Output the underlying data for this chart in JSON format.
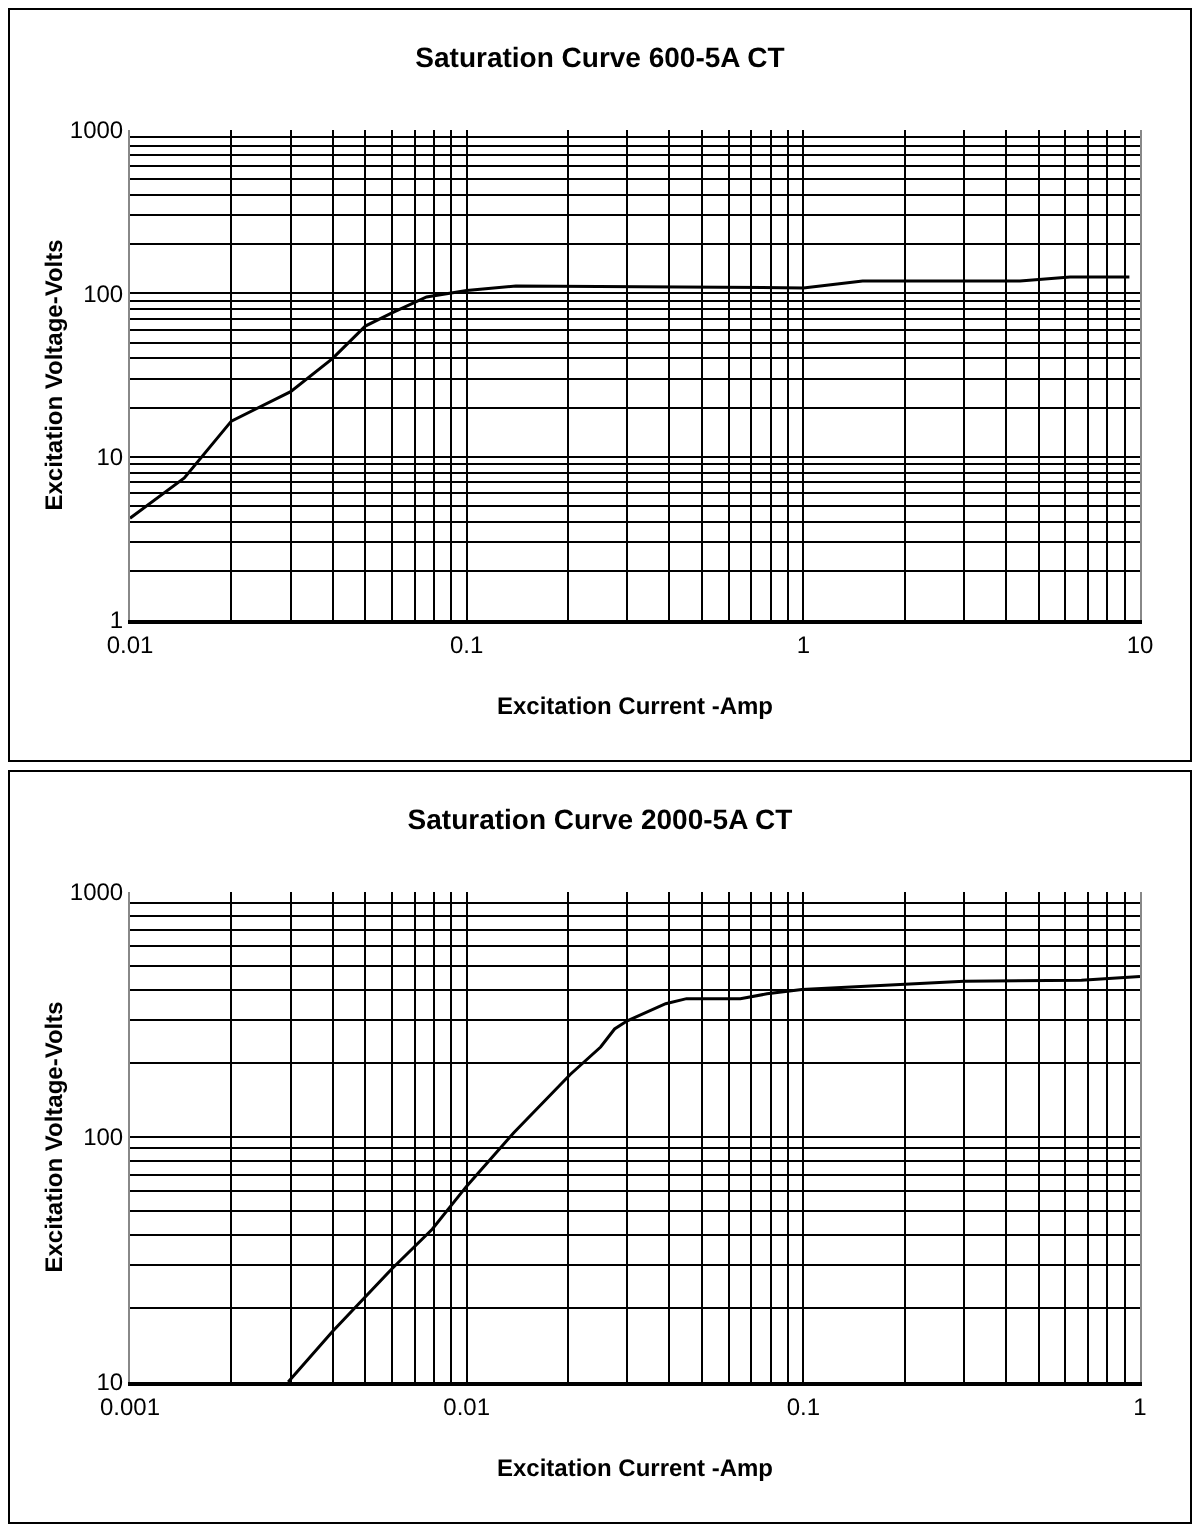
{
  "chart_data": [
    {
      "type": "line",
      "title": "Saturation Curve 600-5A CT",
      "xlabel": "Excitation Current -Amp",
      "ylabel": "Excitation Voltage-Volts",
      "log": "xy",
      "grid": true,
      "marker": "none",
      "line_style": "solid",
      "x": [
        0.01,
        0.0145,
        0.02,
        0.03,
        0.04,
        0.05,
        0.06,
        0.076,
        0.1,
        0.14,
        1,
        1.5,
        4.4,
        6.2,
        9.3
      ],
      "series": [
        {
          "color": "#000000",
          "values": [
            4.2,
            7.4,
            16.5,
            25,
            40,
            63,
            76,
            95,
            104,
            111,
            108,
            119,
            119,
            126,
            126
          ]
        }
      ],
      "xlim": [
        0.01,
        10
      ],
      "ylim": [
        1,
        1000
      ],
      "xticks": [
        0.01,
        {
          "value": 0.02,
          "label": null
        },
        {
          "value": 0.03,
          "label": null
        },
        {
          "value": 0.04,
          "label": null
        },
        {
          "value": 0.05,
          "label": null
        },
        {
          "value": 0.06,
          "label": null
        },
        {
          "value": 0.07,
          "label": null
        },
        {
          "value": 0.08,
          "label": null
        },
        {
          "value": 0.09,
          "label": null
        },
        0.1,
        {
          "value": 0.2,
          "label": null
        },
        {
          "value": 0.3,
          "label": null
        },
        {
          "value": 0.4,
          "label": null
        },
        {
          "value": 0.5,
          "label": null
        },
        {
          "value": 0.6,
          "label": null
        },
        {
          "value": 0.7,
          "label": null
        },
        {
          "value": 0.8,
          "label": null
        },
        {
          "value": 0.9,
          "label": null
        },
        1,
        {
          "value": 2,
          "label": null
        },
        {
          "value": 3,
          "label": null
        },
        {
          "value": 4,
          "label": null
        },
        {
          "value": 5,
          "label": null
        },
        {
          "value": 6,
          "label": null
        },
        {
          "value": 7,
          "label": null
        },
        {
          "value": 8,
          "label": null
        },
        {
          "value": 9,
          "label": null
        },
        10
      ],
      "yticks": [
        1,
        {
          "value": 2,
          "label": null
        },
        {
          "value": 3,
          "label": null
        },
        {
          "value": 4,
          "label": null
        },
        {
          "value": 5,
          "label": null
        },
        {
          "value": 6,
          "label": null
        },
        {
          "value": 7,
          "label": null
        },
        {
          "value": 8,
          "label": null
        },
        {
          "value": 9,
          "label": null
        },
        10,
        {
          "value": 20,
          "label": null
        },
        {
          "value": 30,
          "label": null
        },
        {
          "value": 40,
          "label": null
        },
        {
          "value": 50,
          "label": null
        },
        {
          "value": 60,
          "label": null
        },
        {
          "value": 70,
          "label": null
        },
        {
          "value": 80,
          "label": null
        },
        {
          "value": 90,
          "label": null
        },
        100,
        {
          "value": 200,
          "label": null
        },
        {
          "value": 300,
          "label": null
        },
        {
          "value": 400,
          "label": null
        },
        {
          "value": 500,
          "label": null
        },
        {
          "value": 600,
          "label": null
        },
        {
          "value": 700,
          "label": null
        },
        {
          "value": 800,
          "label": null
        },
        {
          "value": 900,
          "label": null
        },
        1000
      ]
    },
    {
      "type": "line",
      "title": "Saturation Curve 2000-5A CT",
      "xlabel": "Excitation Current -Amp",
      "ylabel": "Excitation Voltage-Volts",
      "log": "xy",
      "grid": true,
      "marker": "none",
      "line_style": "solid",
      "x": [
        0.00295,
        0.004,
        0.006,
        0.0079,
        0.01,
        0.0138,
        0.0203,
        0.025,
        0.0275,
        0.03,
        0.039,
        0.045,
        0.065,
        0.078,
        0.099,
        0.3,
        0.67,
        1
      ],
      "series": [
        {
          "color": "#000000",
          "values": [
            10,
            16.1,
            29,
            42,
            63,
            104,
            180,
            233,
            276,
            298,
            350,
            367,
            367,
            384,
            400,
            432,
            436,
            452
          ]
        }
      ],
      "xlim": [
        0.001,
        1
      ],
      "ylim": [
        10,
        1000
      ],
      "xticks": [
        0.001,
        {
          "value": 0.002,
          "label": null
        },
        {
          "value": 0.003,
          "label": null
        },
        {
          "value": 0.004,
          "label": null
        },
        {
          "value": 0.005,
          "label": null
        },
        {
          "value": 0.006,
          "label": null
        },
        {
          "value": 0.007,
          "label": null
        },
        {
          "value": 0.008,
          "label": null
        },
        {
          "value": 0.009,
          "label": null
        },
        0.01,
        {
          "value": 0.02,
          "label": null
        },
        {
          "value": 0.03,
          "label": null
        },
        {
          "value": 0.04,
          "label": null
        },
        {
          "value": 0.05,
          "label": null
        },
        {
          "value": 0.06,
          "label": null
        },
        {
          "value": 0.07,
          "label": null
        },
        {
          "value": 0.08,
          "label": null
        },
        {
          "value": 0.09,
          "label": null
        },
        0.1,
        {
          "value": 0.2,
          "label": null
        },
        {
          "value": 0.3,
          "label": null
        },
        {
          "value": 0.4,
          "label": null
        },
        {
          "value": 0.5,
          "label": null
        },
        {
          "value": 0.6,
          "label": null
        },
        {
          "value": 0.7,
          "label": null
        },
        {
          "value": 0.8,
          "label": null
        },
        {
          "value": 0.9,
          "label": null
        },
        1
      ],
      "yticks": [
        10,
        {
          "value": 20,
          "label": null
        },
        {
          "value": 30,
          "label": null
        },
        {
          "value": 40,
          "label": null
        },
        {
          "value": 50,
          "label": null
        },
        {
          "value": 60,
          "label": null
        },
        {
          "value": 70,
          "label": null
        },
        {
          "value": 80,
          "label": null
        },
        {
          "value": 90,
          "label": null
        },
        100,
        {
          "value": 200,
          "label": null
        },
        {
          "value": 300,
          "label": null
        },
        {
          "value": 400,
          "label": null
        },
        {
          "value": 500,
          "label": null
        },
        {
          "value": 600,
          "label": null
        },
        {
          "value": 700,
          "label": null
        },
        {
          "value": 800,
          "label": null
        },
        {
          "value": 900,
          "label": null
        },
        1000
      ]
    }
  ]
}
